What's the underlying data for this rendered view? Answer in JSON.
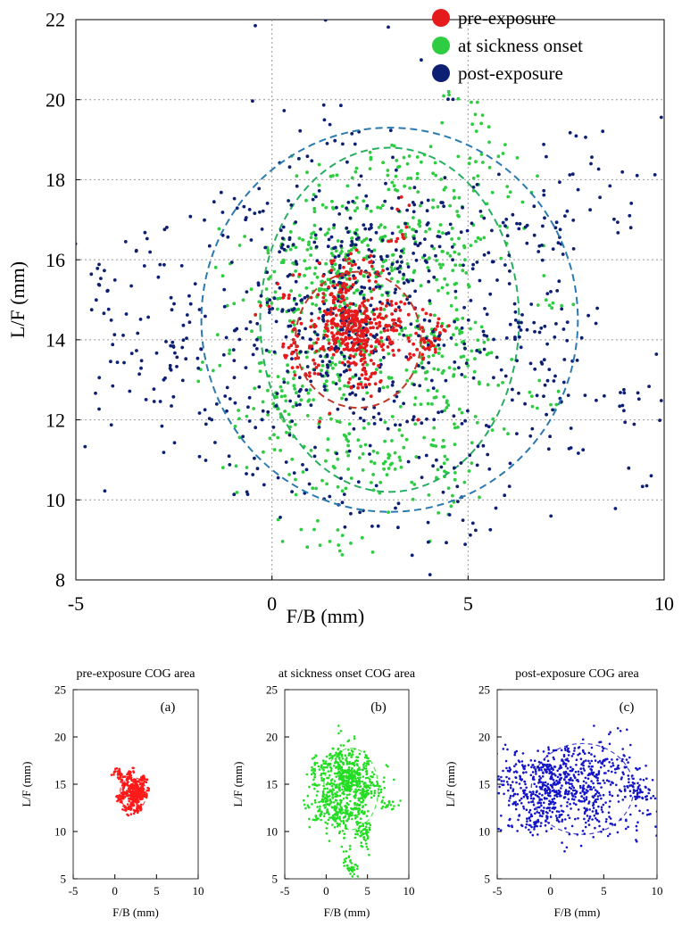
{
  "chart_data": [
    {
      "type": "scatter",
      "title": "",
      "xlabel": "F/B (mm)",
      "ylabel": "L/F (mm)",
      "xlim": [
        -5,
        10
      ],
      "ylim": [
        8,
        22
      ],
      "xticks": [
        "-5",
        "0",
        "5",
        "10"
      ],
      "yticks": [
        "8",
        "10",
        "12",
        "14",
        "16",
        "18",
        "20",
        "22"
      ],
      "grid": true,
      "legend_position": "top-right",
      "series": [
        {
          "name": "pre-exposure",
          "color": "#e41a1c",
          "center": [
            2.1,
            14.1
          ],
          "spread": [
            0.85,
            1.0
          ],
          "ellipse": {
            "center": [
              2.2,
              14.0
            ],
            "radii": [
              1.6,
              1.7
            ],
            "color": "#c0392b"
          }
        },
        {
          "name": "at sickness onset",
          "color": "#2ecc40",
          "center": [
            2.8,
            14.6
          ],
          "spread": [
            2.0,
            2.3
          ],
          "ellipse": {
            "center": [
              3.0,
              14.5
            ],
            "radii": [
              3.3,
              4.3
            ],
            "color": "#27ae60"
          }
        },
        {
          "name": "post-exposure",
          "color": "#0d1f73",
          "center": [
            1.7,
            14.5
          ],
          "spread": [
            3.8,
            2.6
          ],
          "ellipse": {
            "center": [
              3.0,
              14.5
            ],
            "radii": [
              4.8,
              4.8
            ],
            "color": "#2a7ab0"
          }
        }
      ]
    },
    {
      "type": "scatter",
      "title": "pre-exposure COG area",
      "panel_label": "(a)",
      "xlabel": "F/B (mm)",
      "ylabel": "L/F (mm)",
      "xlim": [
        -5,
        10
      ],
      "ylim": [
        5,
        25
      ],
      "xticks": [
        "-5",
        "0",
        "5",
        "10"
      ],
      "yticks": [
        "5",
        "10",
        "15",
        "20",
        "25"
      ],
      "grid": false,
      "series": [
        {
          "color": "#ff1a1a",
          "center": [
            2.1,
            14.1
          ],
          "spread": [
            0.85,
            1.0
          ]
        }
      ]
    },
    {
      "type": "scatter",
      "title": "at sickness onset COG area",
      "panel_label": "(b)",
      "xlabel": "F/B (mm)",
      "ylabel": "L/F (mm)",
      "xlim": [
        -5,
        10
      ],
      "ylim": [
        5,
        25
      ],
      "xticks": [
        "-5",
        "0",
        "5",
        "10"
      ],
      "yticks": [
        "5",
        "10",
        "15",
        "20",
        "25"
      ],
      "grid": false,
      "series": [
        {
          "color": "#22dd22",
          "center": [
            2.8,
            14.6
          ],
          "spread": [
            2.0,
            2.3
          ]
        }
      ]
    },
    {
      "type": "scatter",
      "title": "post-exposure COG area",
      "panel_label": "(c)",
      "xlabel": "F/B (mm)",
      "ylabel": "L/F (mm)",
      "xlim": [
        -5,
        10
      ],
      "ylim": [
        5,
        25
      ],
      "xticks": [
        "-5",
        "0",
        "5",
        "10"
      ],
      "yticks": [
        "5",
        "10",
        "15",
        "20",
        "25"
      ],
      "grid": false,
      "series": [
        {
          "color": "#1515c8",
          "center": [
            1.7,
            14.5
          ],
          "spread": [
            3.8,
            2.6
          ]
        }
      ]
    }
  ]
}
